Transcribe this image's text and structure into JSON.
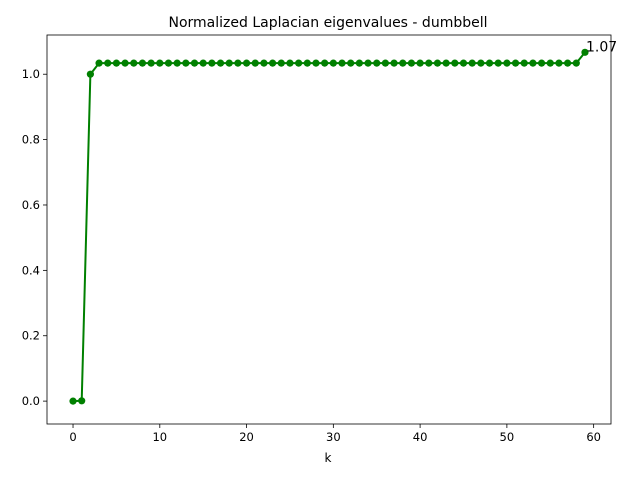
{
  "chart_data": {
    "type": "line",
    "title": "Normalized Laplacian eigenvalues - dumbbell",
    "xlabel": "k",
    "ylabel": "",
    "xlim": [
      -3.0,
      62.0
    ],
    "ylim": [
      -0.07,
      1.12
    ],
    "xticks": [
      0,
      10,
      20,
      30,
      40,
      50,
      60
    ],
    "yticks": [
      0.0,
      0.2,
      0.4,
      0.6,
      0.8,
      1.0
    ],
    "xtick_labels": [
      "0",
      "10",
      "20",
      "30",
      "40",
      "50",
      "60"
    ],
    "ytick_labels": [
      "0.0",
      "0.2",
      "0.4",
      "0.6",
      "0.8",
      "1.0"
    ],
    "grid": false,
    "series": [
      {
        "color": "#008000",
        "marker": "circle",
        "x": [
          0,
          1,
          2,
          3,
          4,
          5,
          6,
          7,
          8,
          9,
          10,
          11,
          12,
          13,
          14,
          15,
          16,
          17,
          18,
          19,
          20,
          21,
          22,
          23,
          24,
          25,
          26,
          27,
          28,
          29,
          30,
          31,
          32,
          33,
          34,
          35,
          36,
          37,
          38,
          39,
          40,
          41,
          42,
          43,
          44,
          45,
          46,
          47,
          48,
          49,
          50,
          51,
          52,
          53,
          54,
          55,
          56,
          57,
          58,
          59
        ],
        "y": [
          0.0,
          0.001,
          1.0,
          1.034,
          1.034,
          1.034,
          1.034,
          1.034,
          1.034,
          1.034,
          1.034,
          1.034,
          1.034,
          1.034,
          1.034,
          1.034,
          1.034,
          1.034,
          1.034,
          1.034,
          1.034,
          1.034,
          1.034,
          1.034,
          1.034,
          1.034,
          1.034,
          1.034,
          1.034,
          1.034,
          1.034,
          1.034,
          1.034,
          1.034,
          1.034,
          1.034,
          1.034,
          1.034,
          1.034,
          1.034,
          1.034,
          1.034,
          1.034,
          1.034,
          1.034,
          1.034,
          1.034,
          1.034,
          1.034,
          1.034,
          1.034,
          1.034,
          1.034,
          1.034,
          1.034,
          1.034,
          1.034,
          1.034,
          1.034,
          1.067
        ]
      }
    ],
    "annotations": [
      {
        "text": "1.07",
        "x": 59,
        "y": 1.067
      }
    ]
  }
}
